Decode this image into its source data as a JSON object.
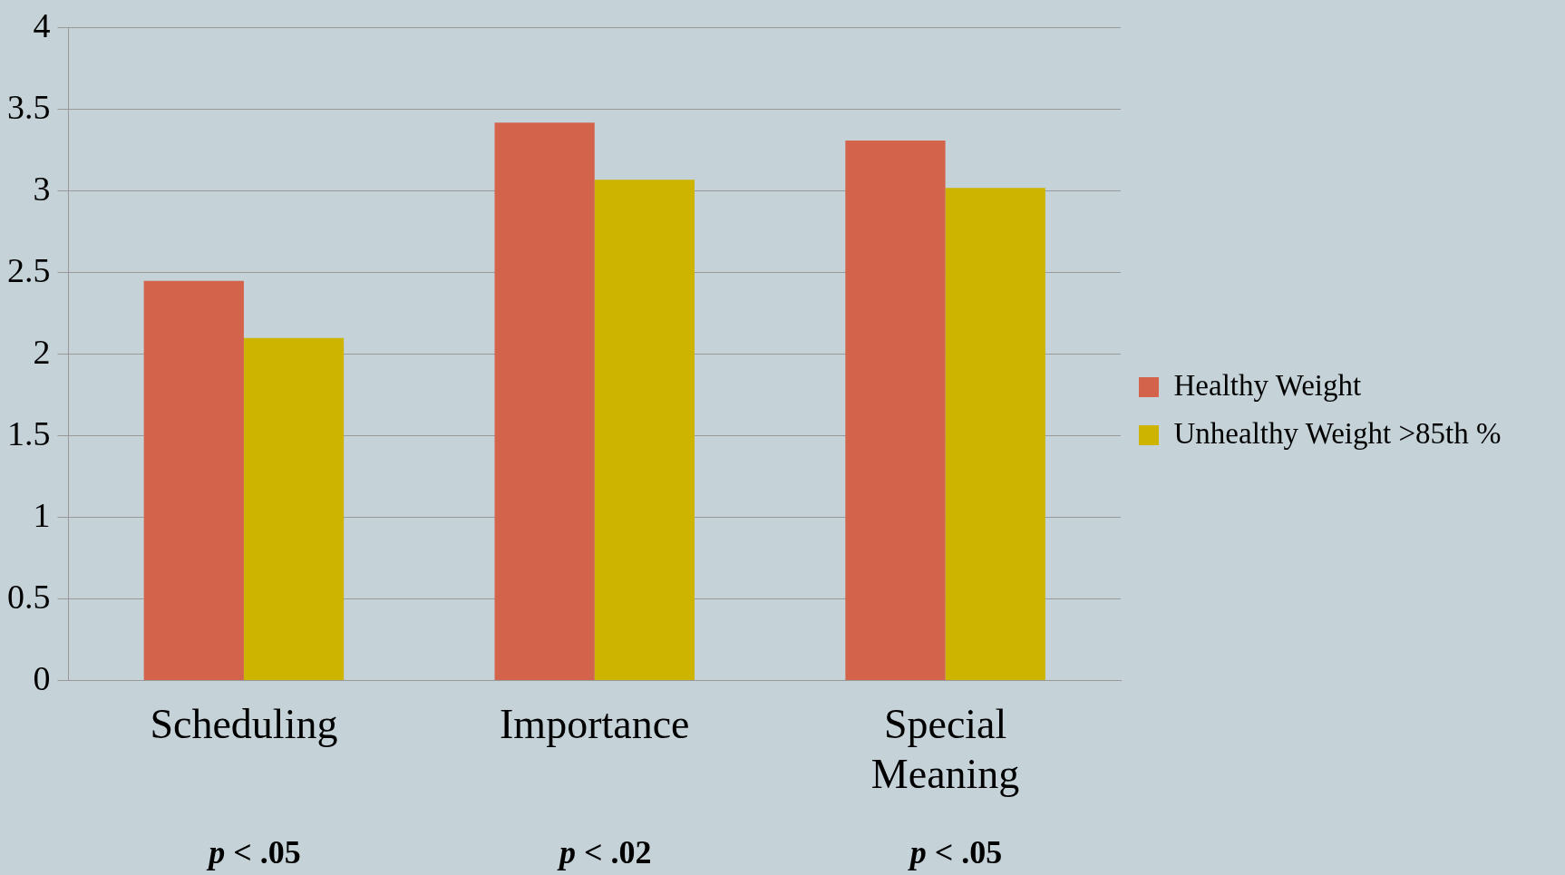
{
  "chart_data": {
    "type": "bar",
    "categories": [
      "Scheduling",
      "Importance",
      "Special Meaning"
    ],
    "series": [
      {
        "name": "Healthy Weight",
        "color": "#d4634b",
        "values": [
          2.45,
          3.42,
          3.31
        ]
      },
      {
        "name": "Unhealthy Weight >85th %",
        "color": "#ccb400",
        "values": [
          2.1,
          3.07,
          3.02
        ]
      }
    ],
    "ylim": [
      0,
      4
    ],
    "yticks": [
      0,
      0.5,
      1,
      1.5,
      2,
      2.5,
      3,
      3.5,
      4
    ],
    "grid": "y",
    "legend": "right",
    "annotations": [
      "p < .05",
      "p < .02",
      "p < .05"
    ]
  }
}
